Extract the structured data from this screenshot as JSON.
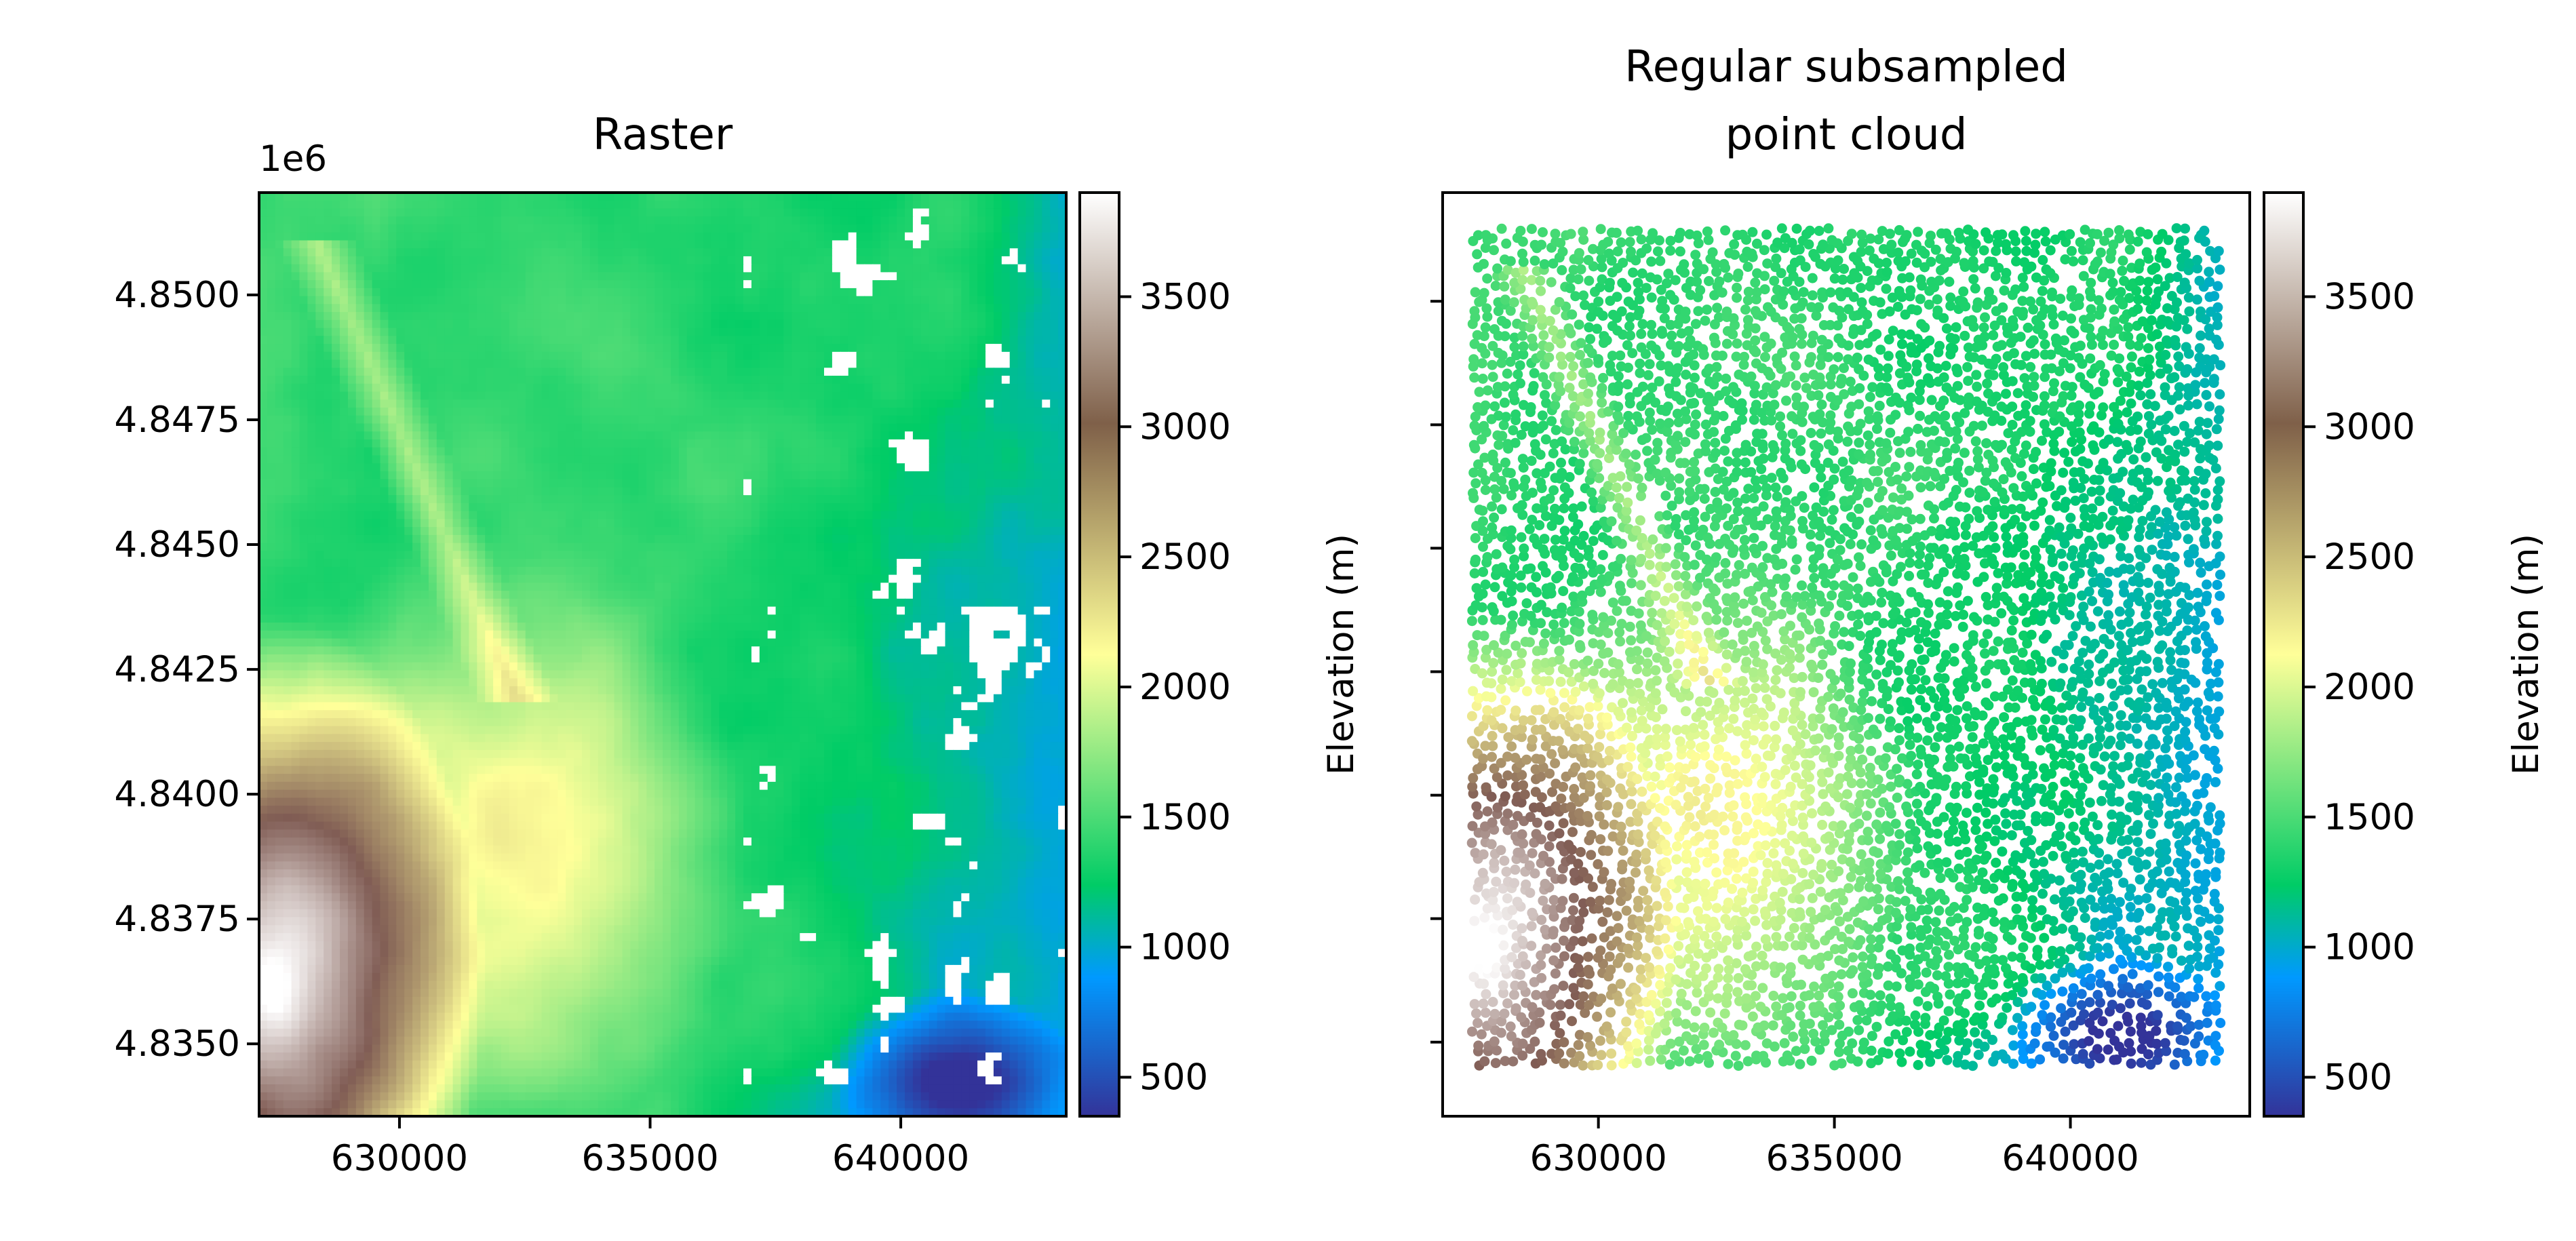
{
  "figure": {
    "colormap": "terrain",
    "background": "#ffffff"
  },
  "chart_data": [
    {
      "type": "heatmap",
      "title": "Raster",
      "x_axis": {
        "range": [
          627200,
          643300
        ],
        "ticks": [
          630000,
          635000,
          640000
        ],
        "tick_labels": [
          "630000",
          "635000",
          "640000"
        ]
      },
      "y_axis": {
        "range": [
          4.83355,
          4.85205
        ],
        "ticks": [
          4.835,
          4.8375,
          4.84,
          4.8425,
          4.845,
          4.8475,
          4.85
        ],
        "tick_labels": [
          "4.8350",
          "4.8375",
          "4.8400",
          "4.8425",
          "4.8450",
          "4.8475",
          "4.8500"
        ],
        "offset_label": "1e6"
      },
      "colorbar": {
        "label": "Elevation (m)",
        "range": [
          350,
          3900
        ],
        "ticks": [
          500,
          1000,
          1500,
          2000,
          2500,
          3000,
          3500
        ],
        "tick_labels": [
          "500",
          "1000",
          "1500",
          "2000",
          "2500",
          "3000",
          "3500"
        ]
      },
      "elevation_range_m": [
        350,
        3900
      ]
    },
    {
      "type": "scatter",
      "title": "Regular subsampled point cloud",
      "x_axis": {
        "range": [
          626700,
          643800
        ],
        "ticks": [
          630000,
          635000,
          640000
        ],
        "tick_labels": [
          "630000",
          "635000",
          "640000"
        ]
      },
      "y_axis": {
        "range": [
          4.8335,
          4.8522
        ],
        "ticks": [
          4.835,
          4.8375,
          4.84,
          4.8425,
          4.845,
          4.8475,
          4.85
        ],
        "tick_labels": []
      },
      "points_extent": {
        "x": [
          627300,
          643200
        ],
        "y": [
          4.8345,
          4.8515
        ]
      },
      "colorbar": {
        "label": "Elevation (m)",
        "range": [
          350,
          3900
        ],
        "ticks": [
          500,
          1000,
          1500,
          2000,
          2500,
          3000,
          3500
        ],
        "tick_labels": [
          "500",
          "1000",
          "1500",
          "2000",
          "2500",
          "3000",
          "3500"
        ]
      },
      "elevation_range_m": [
        350,
        3900
      ]
    }
  ]
}
